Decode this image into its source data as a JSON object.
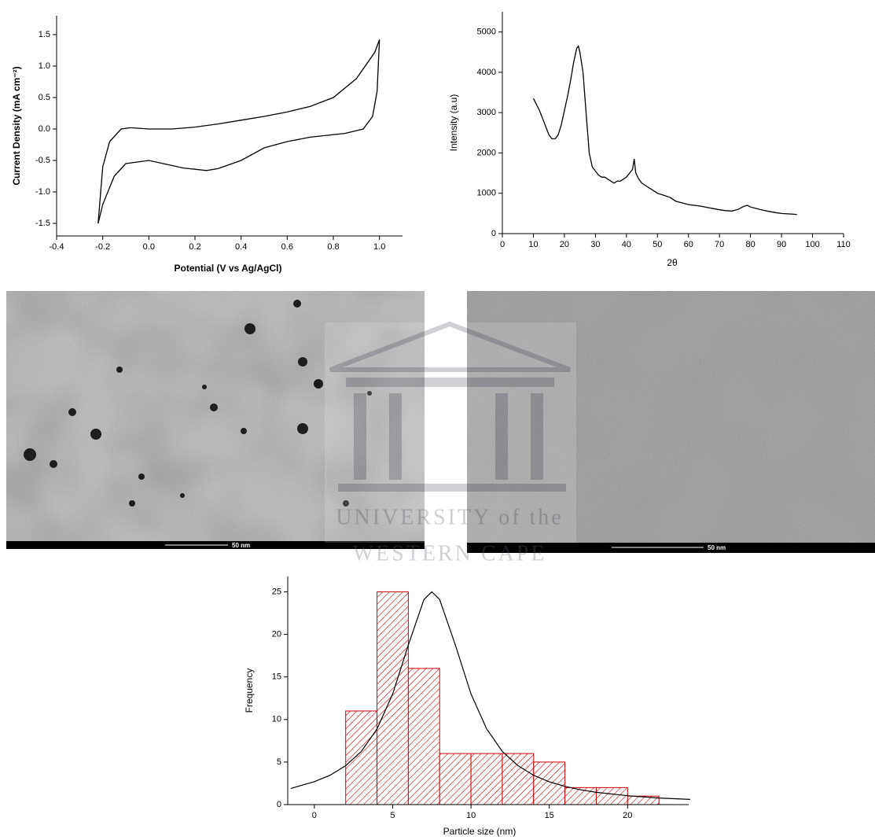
{
  "chart_data": [
    {
      "type": "line",
      "x_label": "Potential (V vs Ag/AgCl)",
      "y_label": "Current Density (mA cm⁻²)",
      "color": "#000000",
      "x": [
        -0.22,
        -0.2,
        -0.17,
        -0.12,
        -0.08,
        0.0,
        0.1,
        0.2,
        0.3,
        0.4,
        0.5,
        0.6,
        0.7,
        0.8,
        0.9,
        0.98,
        1.0,
        0.99,
        0.97,
        0.93,
        0.85,
        0.7,
        0.6,
        0.5,
        0.4,
        0.3,
        0.25,
        0.15,
        0.0,
        -0.1,
        -0.15,
        -0.2,
        -0.22
      ],
      "values": [
        -1.5,
        -0.6,
        -0.2,
        0.0,
        0.02,
        0.0,
        0.0,
        0.03,
        0.08,
        0.14,
        0.2,
        0.27,
        0.36,
        0.5,
        0.8,
        1.22,
        1.42,
        0.6,
        0.2,
        0.0,
        -0.07,
        -0.13,
        -0.2,
        -0.3,
        -0.5,
        -0.63,
        -0.66,
        -0.62,
        -0.5,
        -0.55,
        -0.75,
        -1.2,
        -1.5
      ],
      "xlim": [
        -0.4,
        1.1
      ],
      "xticks": [
        -0.4,
        -0.2,
        {
          "value": 0,
          "label": "0.0"
        },
        0.2,
        0.4,
        0.6,
        0.8,
        {
          "value": 1,
          "label": "1.0"
        }
      ],
      "ylim": [
        -1.7,
        1.8
      ],
      "yticks": [
        -1.5,
        {
          "value": -1,
          "label": "-1.0"
        },
        -0.5,
        {
          "value": 0,
          "label": "0.0"
        },
        0.5,
        {
          "value": 1,
          "label": "1.0"
        },
        1.5
      ]
    },
    {
      "type": "line",
      "x_label": "2θ",
      "y_label": "Intensity (a.u)",
      "color": "#000000",
      "x": [
        10,
        11,
        12,
        13,
        14,
        15,
        16,
        17,
        18,
        19,
        20,
        21,
        22,
        23,
        24,
        24.5,
        25,
        26,
        27,
        28,
        29,
        30,
        31,
        32,
        33,
        34,
        35,
        36,
        37,
        38,
        39,
        40,
        41,
        42,
        42.5,
        43,
        44,
        45,
        46,
        47,
        48,
        50,
        52,
        54,
        56,
        58,
        60,
        62,
        64,
        66,
        68,
        70,
        72,
        74,
        76,
        78,
        79,
        80,
        82,
        84,
        86,
        88,
        90,
        92,
        94,
        95
      ],
      "values": [
        3350,
        3200,
        3050,
        2850,
        2650,
        2450,
        2350,
        2350,
        2450,
        2700,
        3050,
        3400,
        3800,
        4250,
        4600,
        4650,
        4500,
        4000,
        3000,
        2000,
        1650,
        1550,
        1450,
        1400,
        1400,
        1350,
        1300,
        1250,
        1300,
        1300,
        1350,
        1400,
        1500,
        1600,
        1850,
        1500,
        1350,
        1250,
        1200,
        1150,
        1100,
        1000,
        950,
        900,
        800,
        760,
        720,
        700,
        680,
        650,
        620,
        590,
        570,
        560,
        600,
        680,
        700,
        660,
        620,
        580,
        550,
        520,
        500,
        490,
        480,
        470
      ],
      "xlim": [
        0,
        110
      ],
      "xticks": [
        0,
        10,
        20,
        30,
        40,
        50,
        60,
        70,
        80,
        90,
        100,
        110
      ],
      "ylim": [
        0,
        5500
      ],
      "yticks": [
        0,
        1000,
        2000,
        3000,
        4000,
        5000
      ]
    },
    {
      "type": "histogram",
      "x_label": "Particle size (nm)",
      "y_label": "Frequency",
      "color": "#cc0000",
      "bins": [
        2,
        4,
        6,
        8,
        10,
        12,
        14,
        16,
        18,
        20,
        22
      ],
      "values": [
        11,
        25,
        16,
        6,
        6,
        6,
        5,
        2,
        2,
        1
      ],
      "fit": {
        "color": "#000000",
        "x": [
          -1.5,
          0,
          1,
          2,
          3,
          4,
          5,
          6,
          7,
          7.5,
          8,
          9,
          10,
          11,
          12,
          13,
          14,
          15,
          16,
          17,
          18,
          20,
          22,
          24
        ],
        "values": [
          1.9,
          2.7,
          3.45,
          4.57,
          6.25,
          8.9,
          13.0,
          18.75,
          24.1,
          25,
          24.1,
          18.75,
          13.0,
          8.9,
          6.25,
          4.57,
          3.45,
          2.68,
          2.14,
          1.74,
          1.44,
          1.04,
          0.78,
          0.61
        ]
      },
      "xlim": [
        -1.7,
        23.9
      ],
      "xticks": [
        0,
        5,
        10,
        15,
        20
      ],
      "ylim": [
        0,
        26.8
      ],
      "yticks": [
        0,
        5,
        10,
        15,
        20,
        25
      ]
    }
  ],
  "images": [
    {
      "scale_bar": "50 nm"
    },
    {
      "scale_bar": "50 nm"
    }
  ],
  "watermark": {
    "line1": "UNIVERSITY of the",
    "line2": "WESTERN CAPE"
  }
}
